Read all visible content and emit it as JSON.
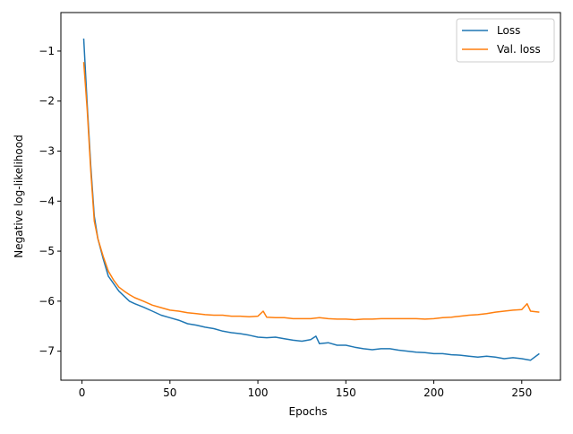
{
  "chart_data": {
    "type": "line",
    "title": "",
    "xlabel": "Epochs",
    "ylabel": "Negative log-likelihood",
    "xlim": [
      -12,
      272
    ],
    "ylim": [
      -7.58,
      -0.23
    ],
    "xticks": [
      0,
      50,
      100,
      150,
      200,
      250
    ],
    "yticks": [
      -7,
      -6,
      -5,
      -4,
      -3,
      -2,
      -1
    ],
    "grid": false,
    "legend": "top-right",
    "series": [
      {
        "name": "Loss",
        "color": "#1f77b4",
        "x": [
          1,
          3,
          5,
          7,
          9,
          12,
          15,
          18,
          21,
          24,
          27,
          30,
          35,
          40,
          45,
          50,
          55,
          60,
          65,
          70,
          75,
          80,
          85,
          90,
          95,
          100,
          105,
          110,
          115,
          120,
          125,
          130,
          133,
          135,
          140,
          145,
          150,
          155,
          160,
          165,
          170,
          175,
          180,
          185,
          190,
          195,
          200,
          205,
          210,
          215,
          220,
          225,
          230,
          235,
          240,
          245,
          250,
          255,
          260
        ],
        "y": [
          -0.75,
          -2.1,
          -3.3,
          -4.3,
          -4.75,
          -5.15,
          -5.5,
          -5.65,
          -5.8,
          -5.9,
          -6.0,
          -6.05,
          -6.12,
          -6.2,
          -6.28,
          -6.33,
          -6.38,
          -6.45,
          -6.48,
          -6.52,
          -6.55,
          -6.6,
          -6.63,
          -6.65,
          -6.68,
          -6.72,
          -6.73,
          -6.72,
          -6.75,
          -6.78,
          -6.8,
          -6.77,
          -6.7,
          -6.85,
          -6.83,
          -6.88,
          -6.88,
          -6.92,
          -6.95,
          -6.97,
          -6.95,
          -6.95,
          -6.98,
          -7.0,
          -7.02,
          -7.03,
          -7.05,
          -7.05,
          -7.07,
          -7.08,
          -7.1,
          -7.12,
          -7.1,
          -7.12,
          -7.15,
          -7.13,
          -7.15,
          -7.18,
          -7.05
        ]
      },
      {
        "name": "Val. loss",
        "color": "#ff7f0e",
        "x": [
          1,
          3,
          5,
          7,
          9,
          12,
          15,
          18,
          21,
          24,
          27,
          30,
          35,
          40,
          45,
          50,
          55,
          60,
          65,
          70,
          75,
          80,
          85,
          90,
          95,
          100,
          103,
          105,
          110,
          115,
          120,
          125,
          130,
          135,
          140,
          145,
          150,
          155,
          160,
          165,
          170,
          175,
          180,
          185,
          190,
          195,
          200,
          205,
          210,
          215,
          220,
          225,
          230,
          235,
          240,
          245,
          250,
          253,
          255,
          260
        ],
        "y": [
          -1.22,
          -2.2,
          -3.4,
          -4.4,
          -4.75,
          -5.1,
          -5.4,
          -5.58,
          -5.72,
          -5.8,
          -5.87,
          -5.93,
          -6.0,
          -6.08,
          -6.13,
          -6.18,
          -6.2,
          -6.23,
          -6.25,
          -6.27,
          -6.28,
          -6.28,
          -6.3,
          -6.3,
          -6.31,
          -6.3,
          -6.2,
          -6.32,
          -6.33,
          -6.33,
          -6.35,
          -6.35,
          -6.35,
          -6.33,
          -6.35,
          -6.36,
          -6.36,
          -6.37,
          -6.36,
          -6.36,
          -6.35,
          -6.35,
          -6.35,
          -6.35,
          -6.35,
          -6.36,
          -6.35,
          -6.33,
          -6.32,
          -6.3,
          -6.28,
          -6.27,
          -6.25,
          -6.22,
          -6.2,
          -6.18,
          -6.17,
          -6.05,
          -6.2,
          -6.22
        ]
      }
    ]
  }
}
